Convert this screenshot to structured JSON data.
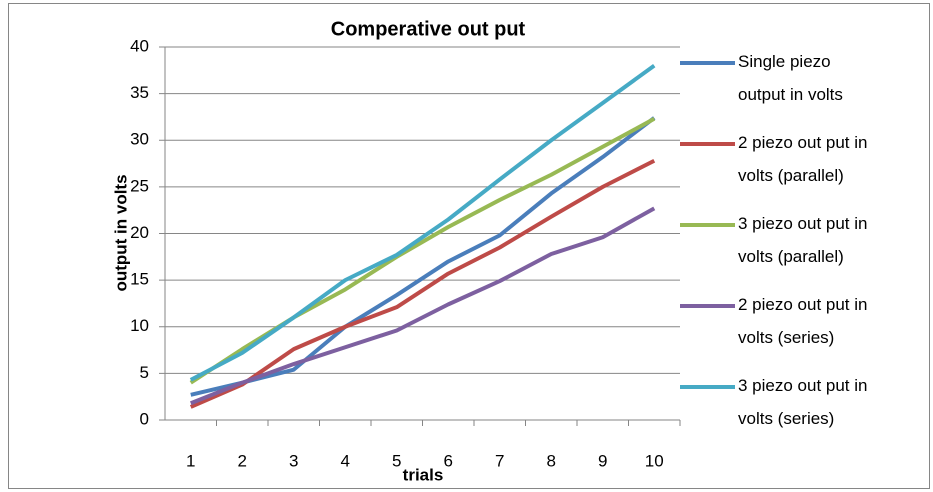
{
  "chart_data": {
    "type": "line",
    "title": "Comperative out put",
    "x_label": "trials",
    "y_label": "output in volts",
    "categories": [
      1,
      2,
      3,
      4,
      5,
      6,
      7,
      8,
      9,
      10
    ],
    "series": [
      {
        "name": "Single piezo output in volts",
        "color": "#4a7ebb",
        "values": [
          2.7,
          4.0,
          5.4,
          10.0,
          13.4,
          17.0,
          19.8,
          24.3,
          28.2,
          32.4
        ]
      },
      {
        "name": "2 piezo out put in volts (parallel)",
        "color": "#be4b48",
        "values": [
          1.4,
          3.8,
          7.6,
          10.0,
          12.1,
          15.7,
          18.5,
          21.8,
          25.0,
          27.8
        ]
      },
      {
        "name": "3 piezo out put in volts (parallel)",
        "color": "#98b954",
        "values": [
          4.0,
          7.6,
          11.0,
          14.0,
          17.5,
          20.7,
          23.6,
          26.3,
          29.3,
          32.3
        ]
      },
      {
        "name": "2 piezo out put in volts (series)",
        "color": "#7d60a0",
        "values": [
          1.8,
          4.0,
          6.0,
          7.8,
          9.6,
          12.4,
          14.9,
          17.8,
          19.6,
          22.7
        ]
      },
      {
        "name": "3 piezo out put in volts (series)",
        "color": "#46aac5",
        "values": [
          4.3,
          7.2,
          11.0,
          15.0,
          17.7,
          21.5,
          25.8,
          30.0,
          34.0,
          38.0
        ]
      }
    ],
    "ylim": [
      0,
      40
    ],
    "yticks": [
      0,
      5,
      10,
      15,
      20,
      25,
      30,
      35,
      40
    ],
    "grid": true,
    "legend": "right"
  }
}
